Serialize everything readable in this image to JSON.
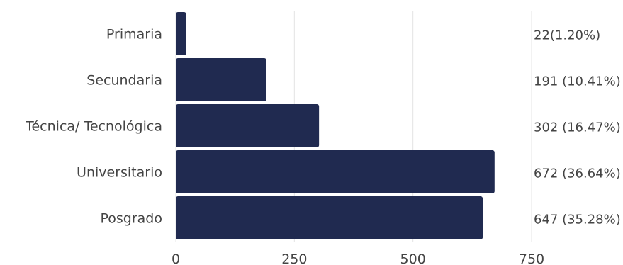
{
  "chart_data": {
    "type": "bar",
    "orientation": "horizontal",
    "categories": [
      "Primaria",
      "Secundaria",
      "Técnica/ Tecnológica",
      "Universitario",
      "Posgrado"
    ],
    "values": [
      22,
      191,
      302,
      672,
      647
    ],
    "data_labels": [
      "22(1.20%)",
      "191 (10.41%)",
      "302 (16.47%)",
      "672 (36.64%)",
      "647 (35.28%)"
    ],
    "xlim": [
      0,
      750
    ],
    "x_ticks": [
      "0",
      "250",
      "500",
      "750"
    ],
    "grid": true,
    "colors": {
      "bar": "#202a50",
      "grid": "#e4e4e4",
      "text": "#444444"
    },
    "title": "",
    "xlabel": "",
    "ylabel": ""
  }
}
